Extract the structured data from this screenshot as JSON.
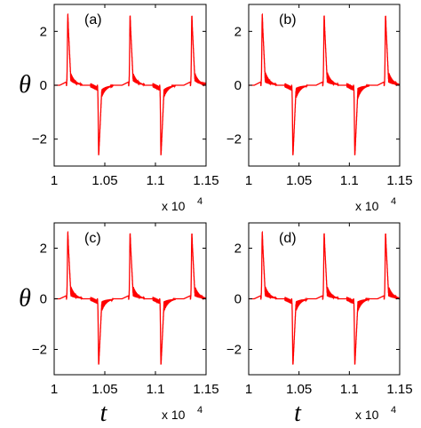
{
  "chart_data": [
    {
      "type": "line",
      "panel_label": "(a)",
      "xlim": [
        10000,
        11500
      ],
      "ylim": [
        -3,
        3
      ],
      "xticks": [
        "1",
        "1.05",
        "1.1",
        "1.15"
      ],
      "yticks": [
        "2",
        "0",
        "−2"
      ],
      "x_multiplier": "x 10",
      "x_multiplier_exp": "4",
      "ylabel": "θ",
      "xlabel": "",
      "series": [
        {
          "color": "#ff0000",
          "description_values": {
            "baseline": 0.0,
            "positive_peaks_x": [
              10135,
              10750,
              11360
            ],
            "positive_peak_y": 2.6,
            "negative_peaks_x": [
              10440,
              11055
            ],
            "negative_peak_y": -2.6,
            "oscillation_amplitude": 0.15
          }
        }
      ]
    },
    {
      "type": "line",
      "panel_label": "(b)",
      "xlim": [
        10000,
        11500
      ],
      "ylim": [
        -3,
        3
      ],
      "xticks": [
        "1",
        "1.05",
        "1.1",
        "1.15"
      ],
      "yticks": [
        "2",
        "0",
        "−2"
      ],
      "x_multiplier": "x 10",
      "x_multiplier_exp": "4",
      "ylabel": "",
      "xlabel": "",
      "series": [
        {
          "color": "#ff0000",
          "description_values": {
            "baseline": 0.0,
            "positive_peaks_x": [
              10135,
              10750,
              11360
            ],
            "positive_peak_y": 2.6,
            "negative_peaks_x": [
              10440,
              11055
            ],
            "negative_peak_y": -2.6,
            "oscillation_amplitude": 0.2
          }
        }
      ]
    },
    {
      "type": "line",
      "panel_label": "(c)",
      "xlim": [
        10000,
        11500
      ],
      "ylim": [
        -3,
        3
      ],
      "xticks": [
        "1",
        "1.05",
        "1.1",
        "1.15"
      ],
      "yticks": [
        "2",
        "0",
        "−2"
      ],
      "x_multiplier": "x 10",
      "x_multiplier_exp": "4",
      "ylabel": "θ",
      "xlabel": "t",
      "series": [
        {
          "color": "#ff0000",
          "description_values": {
            "baseline": 0.0,
            "positive_peaks_x": [
              10135,
              10750,
              11360
            ],
            "positive_peak_y": 2.6,
            "negative_peaks_x": [
              10440,
              11055
            ],
            "negative_peak_y": -2.6,
            "oscillation_amplitude": 0.2
          }
        }
      ]
    },
    {
      "type": "line",
      "panel_label": "(d)",
      "xlim": [
        10000,
        11500
      ],
      "ylim": [
        -3,
        3
      ],
      "xticks": [
        "1",
        "1.05",
        "1.1",
        "1.15"
      ],
      "yticks": [
        "2",
        "0",
        "−2"
      ],
      "x_multiplier": "x 10",
      "x_multiplier_exp": "4",
      "ylabel": "",
      "xlabel": "t",
      "series": [
        {
          "color": "#ff0000",
          "description_values": {
            "baseline": 0.0,
            "positive_peaks_x": [
              10135,
              10750,
              11360
            ],
            "positive_peak_y": 2.6,
            "negative_peaks_x": [
              10440,
              11055
            ],
            "negative_peak_y": -2.6,
            "oscillation_amplitude": 0.2
          }
        }
      ]
    }
  ]
}
